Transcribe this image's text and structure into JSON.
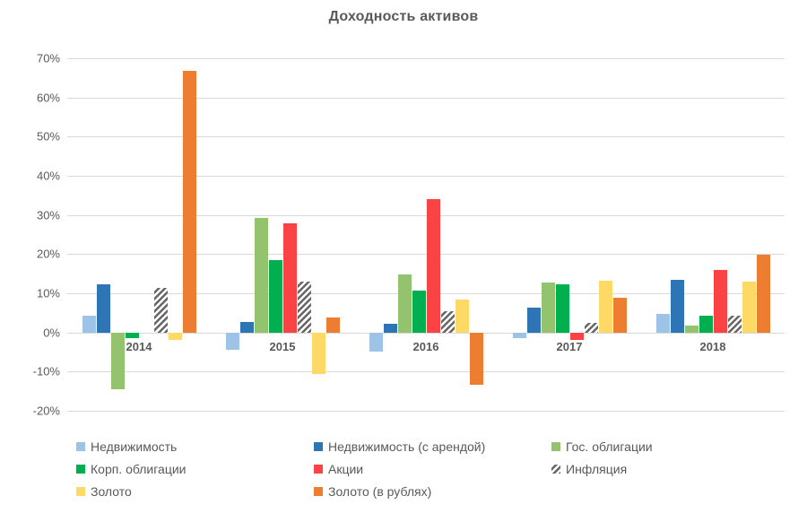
{
  "chart_data": {
    "type": "bar",
    "title": "Доходность активов",
    "categories": [
      "2014",
      "2015",
      "2016",
      "2017",
      "2018"
    ],
    "series": [
      {
        "name": "Недвижимость",
        "color": "#9DC3E6",
        "hatch": false,
        "values": [
          4.3,
          -4.5,
          -5.0,
          -1.5,
          4.8
        ]
      },
      {
        "name": "Недвижимость (с арендой)",
        "color": "#2E75B6",
        "hatch": false,
        "values": [
          12.4,
          2.6,
          2.3,
          6.3,
          13.5
        ]
      },
      {
        "name": "Гос. облигации",
        "color": "#93C46D",
        "hatch": false,
        "values": [
          -14.5,
          29.3,
          14.9,
          12.7,
          1.8
        ]
      },
      {
        "name": "Корп. облигации",
        "color": "#00B050",
        "hatch": false,
        "values": [
          -1.5,
          18.5,
          10.8,
          12.2,
          4.3
        ]
      },
      {
        "name": "Акции",
        "color": "#FB4244",
        "hatch": false,
        "values": [
          0,
          27.8,
          34.0,
          -2.0,
          15.9
        ]
      },
      {
        "name": "Инфляция",
        "color": "#666666",
        "hatch": true,
        "values": [
          11.4,
          12.9,
          5.4,
          2.5,
          4.3
        ]
      },
      {
        "name": "Золото",
        "color": "#FFD966",
        "hatch": false,
        "values": [
          -2.0,
          -10.5,
          8.4,
          13.2,
          13.0
        ]
      },
      {
        "name": "Золото (в рублях)",
        "color": "#ED7D31",
        "hatch": false,
        "values": [
          66.7,
          3.8,
          -13.3,
          8.8,
          19.9
        ]
      }
    ],
    "ylim": [
      -20,
      70
    ],
    "yticks": [
      {
        "value": 70,
        "label": "70%"
      },
      {
        "value": 60,
        "label": "60%"
      },
      {
        "value": 50,
        "label": "50%"
      },
      {
        "value": 40,
        "label": "40%"
      },
      {
        "value": 30,
        "label": "30%"
      },
      {
        "value": 20,
        "label": "20%"
      },
      {
        "value": 10,
        "label": "10%"
      },
      {
        "value": 0,
        "label": "0%"
      },
      {
        "value": -10,
        "label": "-10%"
      },
      {
        "value": -20,
        "label": "-20%"
      }
    ],
    "grid": true,
    "legend_position": "bottom",
    "colors": {
      "text": "#595959",
      "gridline": "#D9D9D9",
      "background": "#FFFFFF"
    }
  }
}
